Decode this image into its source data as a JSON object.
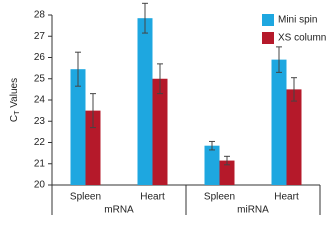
{
  "chart_data": {
    "type": "bar",
    "ylabel_parts": [
      "C",
      "T",
      " Values"
    ],
    "categories": [
      "Spleen",
      "Heart",
      "Spleen",
      "Heart"
    ],
    "groups": [
      {
        "label": "mRNA",
        "size": 2
      },
      {
        "label": "miRNA",
        "size": 2
      }
    ],
    "series": [
      {
        "name": "Mini spin",
        "color": "#1ea7e0",
        "values": [
          25.45,
          27.85,
          21.85,
          25.9
        ],
        "errors": [
          0.8,
          0.7,
          0.2,
          0.6
        ]
      },
      {
        "name": "XS column",
        "color": "#b5192a",
        "values": [
          23.5,
          25.0,
          21.15,
          24.5
        ],
        "errors": [
          0.8,
          0.7,
          0.2,
          0.55
        ]
      }
    ],
    "ylim": [
      20,
      28
    ],
    "yticks": [
      20,
      21,
      22,
      23,
      24,
      25,
      26,
      27,
      28
    ],
    "legend": "top-right"
  }
}
